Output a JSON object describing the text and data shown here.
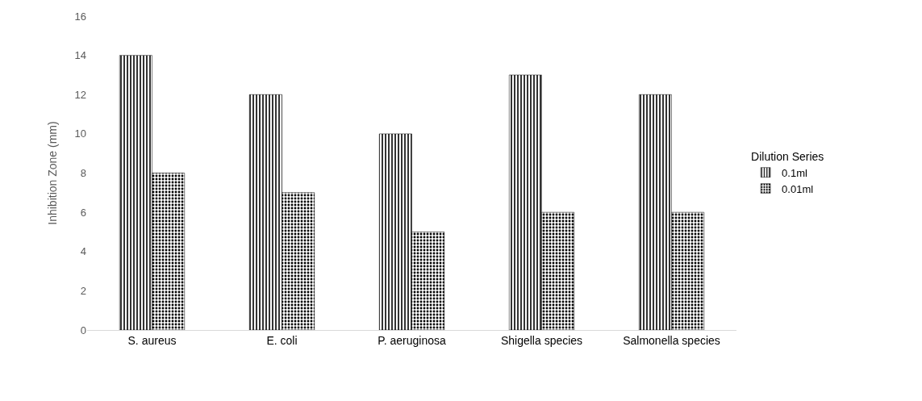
{
  "chart_data": {
    "type": "bar",
    "ylabel": "Inhibition Zone (mm)",
    "legend_title": "Dilution Series",
    "categories": [
      "S. aureus",
      "E. coli",
      "P. aeruginosa",
      "Shigella species",
      "Salmonella species"
    ],
    "series": [
      {
        "name": "0.1ml",
        "color": "#000000",
        "values": [
          14,
          12,
          10,
          13,
          12
        ]
      },
      {
        "name": "0.01ml",
        "color": "#000000",
        "values": [
          8,
          7,
          5,
          6,
          6
        ]
      }
    ],
    "ylim": [
      0,
      16
    ],
    "yticks": [
      0,
      2,
      4,
      6,
      8,
      10,
      12,
      14,
      16
    ],
    "grid": false,
    "legend": "right"
  }
}
